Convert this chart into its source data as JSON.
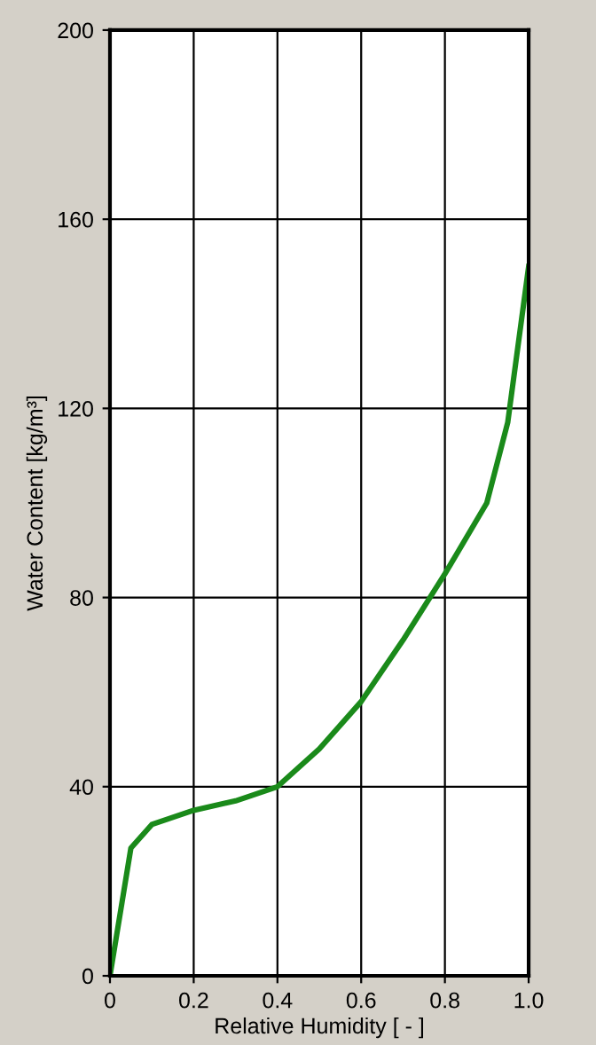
{
  "chart_data": {
    "type": "line",
    "xlabel": "Relative Humidity [ - ]",
    "ylabel": "Water Content [kg/m³]",
    "x": [
      0,
      0.05,
      0.1,
      0.2,
      0.3,
      0.4,
      0.5,
      0.6,
      0.7,
      0.8,
      0.9,
      0.95,
      1.0
    ],
    "series": [
      {
        "color": "#1a8a1a",
        "values": [
          0,
          27,
          32,
          35,
          37,
          40,
          48,
          58,
          71,
          85,
          100,
          117,
          150
        ]
      }
    ],
    "xlim": [
      0,
      1
    ],
    "xticks": [
      0,
      0.2,
      0.4,
      0.6,
      0.8,
      {
        "value": 1,
        "label": "1.0"
      }
    ],
    "ylim": [
      0,
      200
    ],
    "yticks": [
      0,
      40,
      80,
      120,
      160,
      200
    ],
    "grid": true,
    "marker": "none",
    "line_style": "solid",
    "legend": false
  }
}
